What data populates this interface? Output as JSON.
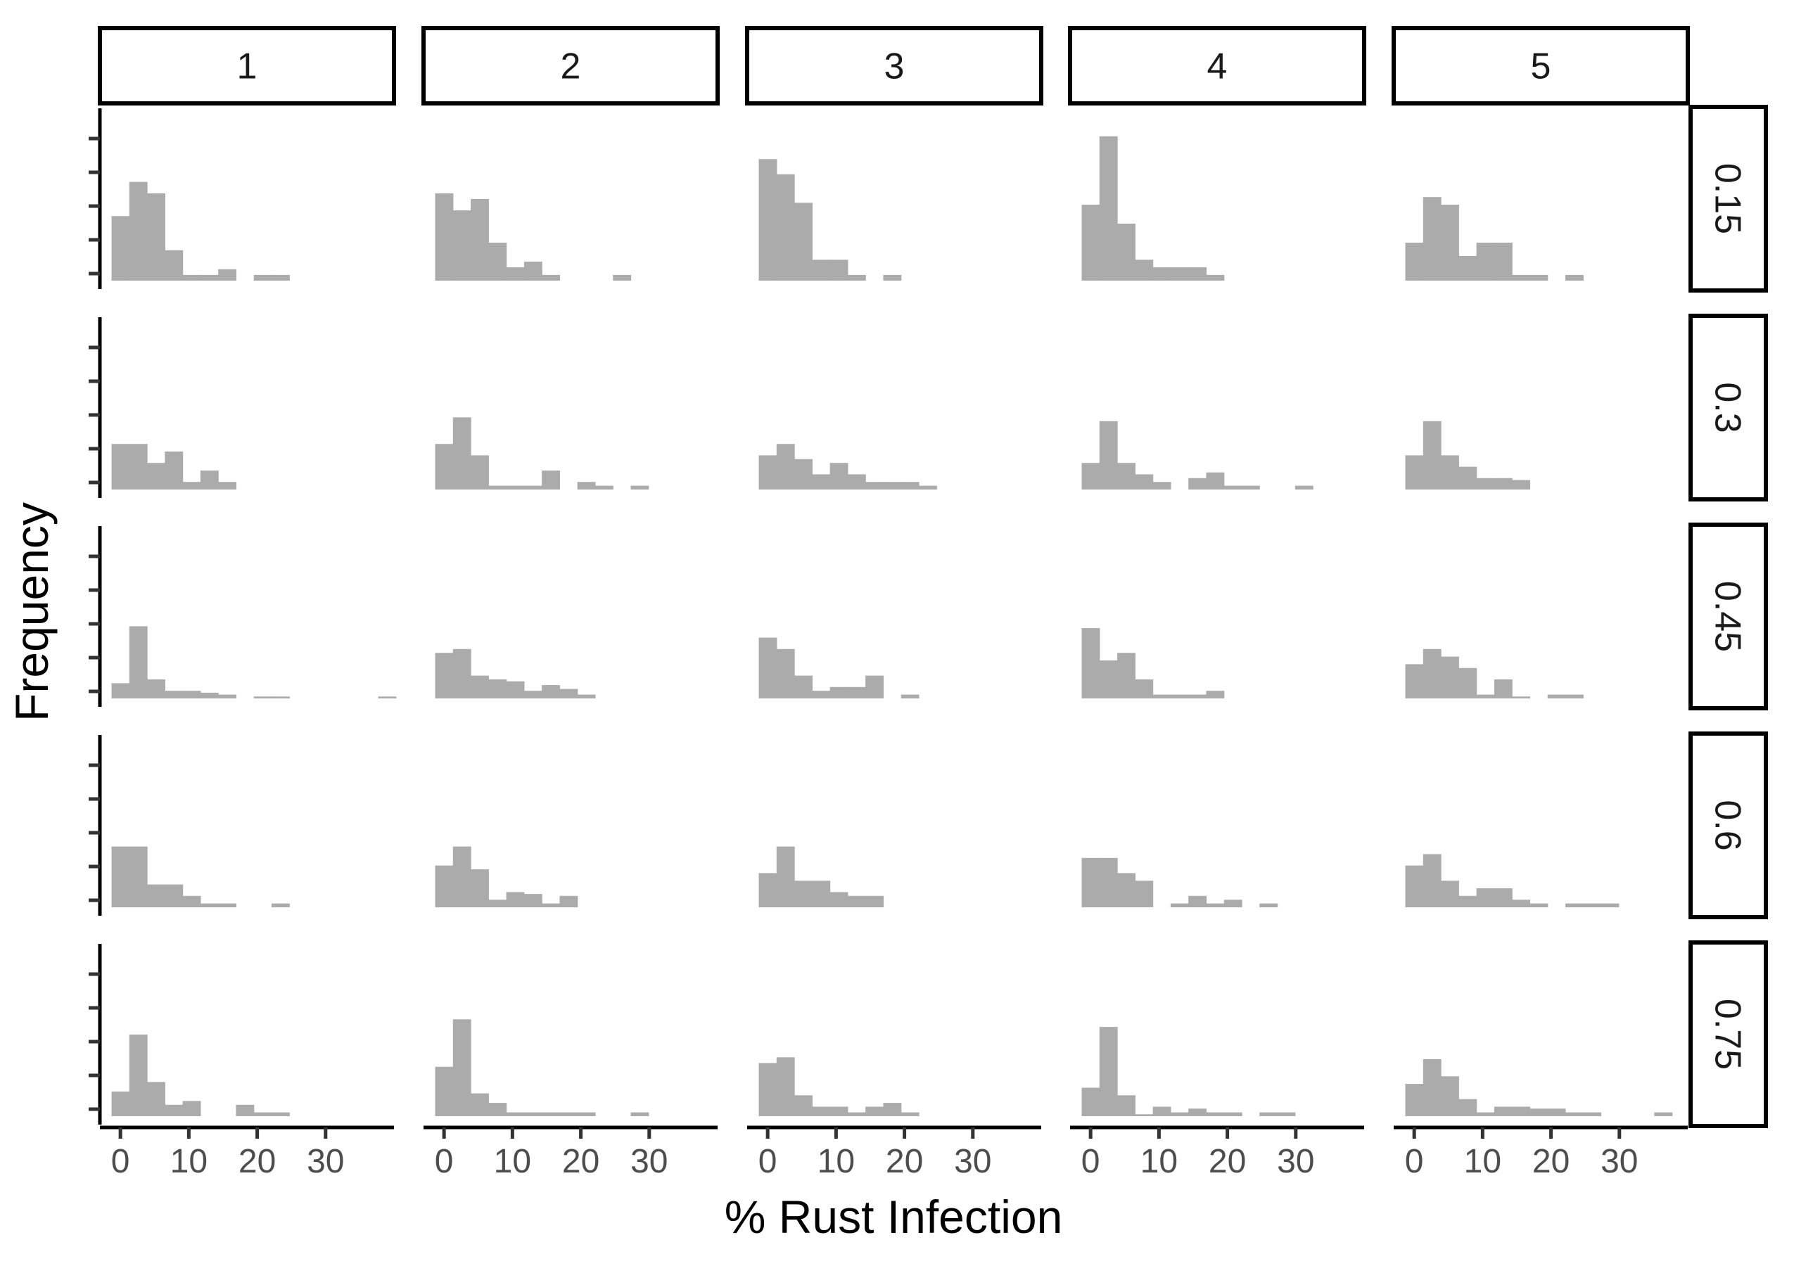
{
  "chart_data": {
    "type": "bar",
    "subtype": "faceted-histogram",
    "xlabel": "% Rust Infection",
    "ylabel": "Frequency",
    "xlim": [
      -3,
      40
    ],
    "xticks": [
      0,
      10,
      20,
      30
    ],
    "bin_width": 2.6,
    "first_bin_start": -1.3,
    "bar_color": "#ababab",
    "grid": false,
    "legend": "none",
    "column_facets": [
      "1",
      "2",
      "3",
      "4",
      "5"
    ],
    "row_facets": [
      "0.15",
      "0.3",
      "0.45",
      "0.6",
      "0.75"
    ],
    "y_counts_note": "relative bar heights (counts not labeled on axis)",
    "panels": [
      [
        {
          "col": "1",
          "row": "0.15",
          "counts": [
            3.4,
            5.2,
            4.6,
            1.6,
            0.3,
            0.3,
            0.6,
            0,
            0.3,
            0.3
          ]
        },
        {
          "col": "2",
          "row": "0.15",
          "counts": [
            4.6,
            3.7,
            4.3,
            2.0,
            0.7,
            1.0,
            0.3,
            0,
            0,
            0,
            0.3
          ]
        },
        {
          "col": "3",
          "row": "0.15",
          "counts": [
            6.4,
            5.6,
            4.1,
            1.1,
            1.1,
            0.3,
            0,
            0.3
          ]
        },
        {
          "col": "4",
          "row": "0.15",
          "counts": [
            4.0,
            7.6,
            3.0,
            1.1,
            0.7,
            0.7,
            0.7,
            0.3
          ]
        },
        {
          "col": "5",
          "row": "0.15",
          "counts": [
            2.0,
            4.4,
            4.0,
            1.3,
            2.0,
            2.0,
            0.3,
            0.3,
            0,
            0.3
          ]
        }
      ],
      [
        {
          "col": "1",
          "row": "0.3",
          "counts": [
            2.4,
            2.4,
            1.4,
            2.0,
            0.4,
            1.0,
            0.4
          ]
        },
        {
          "col": "2",
          "row": "0.3",
          "counts": [
            2.4,
            3.8,
            1.8,
            0.2,
            0.2,
            0.2,
            1.0,
            0,
            0.4,
            0.2,
            0,
            0.2
          ]
        },
        {
          "col": "3",
          "row": "0.3",
          "counts": [
            1.8,
            2.4,
            1.6,
            0.8,
            1.4,
            0.8,
            0.4,
            0.4,
            0.4,
            0.2
          ]
        },
        {
          "col": "4",
          "row": "0.3",
          "counts": [
            1.4,
            3.6,
            1.4,
            0.8,
            0.4,
            0,
            0.6,
            0.9,
            0.2,
            0.2,
            0,
            0,
            0.2
          ]
        },
        {
          "col": "5",
          "row": "0.3",
          "counts": [
            1.8,
            3.6,
            1.8,
            1.2,
            0.6,
            0.6,
            0.5
          ]
        }
      ],
      [
        {
          "col": "1",
          "row": "0.45",
          "counts": [
            0.8,
            3.8,
            1.0,
            0.4,
            0.4,
            0.3,
            0.2,
            0,
            0.1,
            0.1,
            0,
            0,
            0,
            0,
            0,
            0.1
          ]
        },
        {
          "col": "2",
          "row": "0.45",
          "counts": [
            2.4,
            2.6,
            1.2,
            1.0,
            0.9,
            0.4,
            0.7,
            0.5,
            0.2
          ]
        },
        {
          "col": "3",
          "row": "0.45",
          "counts": [
            3.2,
            2.6,
            1.2,
            0.4,
            0.6,
            0.6,
            1.2,
            0,
            0.2
          ]
        },
        {
          "col": "4",
          "row": "0.45",
          "counts": [
            3.7,
            2.0,
            2.4,
            1.0,
            0.2,
            0.2,
            0.2,
            0.4
          ]
        },
        {
          "col": "5",
          "row": "0.45",
          "counts": [
            1.8,
            2.6,
            2.2,
            1.6,
            0.2,
            1.0,
            0.1,
            0,
            0.2,
            0.2
          ]
        }
      ],
      [
        {
          "col": "1",
          "row": "0.6",
          "counts": [
            3.2,
            3.2,
            1.2,
            1.2,
            0.6,
            0.2,
            0.2,
            0,
            0,
            0.2
          ]
        },
        {
          "col": "2",
          "row": "0.6",
          "counts": [
            2.2,
            3.2,
            2.0,
            0.4,
            0.8,
            0.7,
            0.2,
            0.6
          ]
        },
        {
          "col": "3",
          "row": "0.6",
          "counts": [
            1.8,
            3.2,
            1.4,
            1.4,
            0.8,
            0.6,
            0.6
          ]
        },
        {
          "col": "4",
          "row": "0.6",
          "counts": [
            2.6,
            2.6,
            1.8,
            1.4,
            0,
            0.2,
            0.6,
            0.2,
            0.4,
            0,
            0.2
          ]
        },
        {
          "col": "5",
          "row": "0.6",
          "counts": [
            2.2,
            2.8,
            1.4,
            0.6,
            1.0,
            1.0,
            0.4,
            0.2,
            0,
            0.2,
            0.2,
            0.2
          ]
        }
      ],
      [
        {
          "col": "1",
          "row": "0.75",
          "counts": [
            1.3,
            4.3,
            1.8,
            0.6,
            0.8,
            0,
            0,
            0.6,
            0.2,
            0.2
          ]
        },
        {
          "col": "2",
          "row": "0.75",
          "counts": [
            2.6,
            5.1,
            1.2,
            0.7,
            0.2,
            0.2,
            0.2,
            0.2,
            0.2,
            0,
            0,
            0.2
          ]
        },
        {
          "col": "3",
          "row": "0.75",
          "counts": [
            2.8,
            3.1,
            1.1,
            0.5,
            0.5,
            0.2,
            0.5,
            0.7,
            0.2
          ]
        },
        {
          "col": "4",
          "row": "0.75",
          "counts": [
            1.5,
            4.7,
            1.1,
            0.1,
            0.5,
            0.2,
            0.4,
            0.2,
            0.2,
            0,
            0.2,
            0.2
          ]
        },
        {
          "col": "5",
          "row": "0.75",
          "counts": [
            1.7,
            3.0,
            2.1,
            0.9,
            0.2,
            0.5,
            0.5,
            0.4,
            0.4,
            0.2,
            0.2,
            0,
            0,
            0,
            0.2
          ]
        }
      ]
    ]
  }
}
